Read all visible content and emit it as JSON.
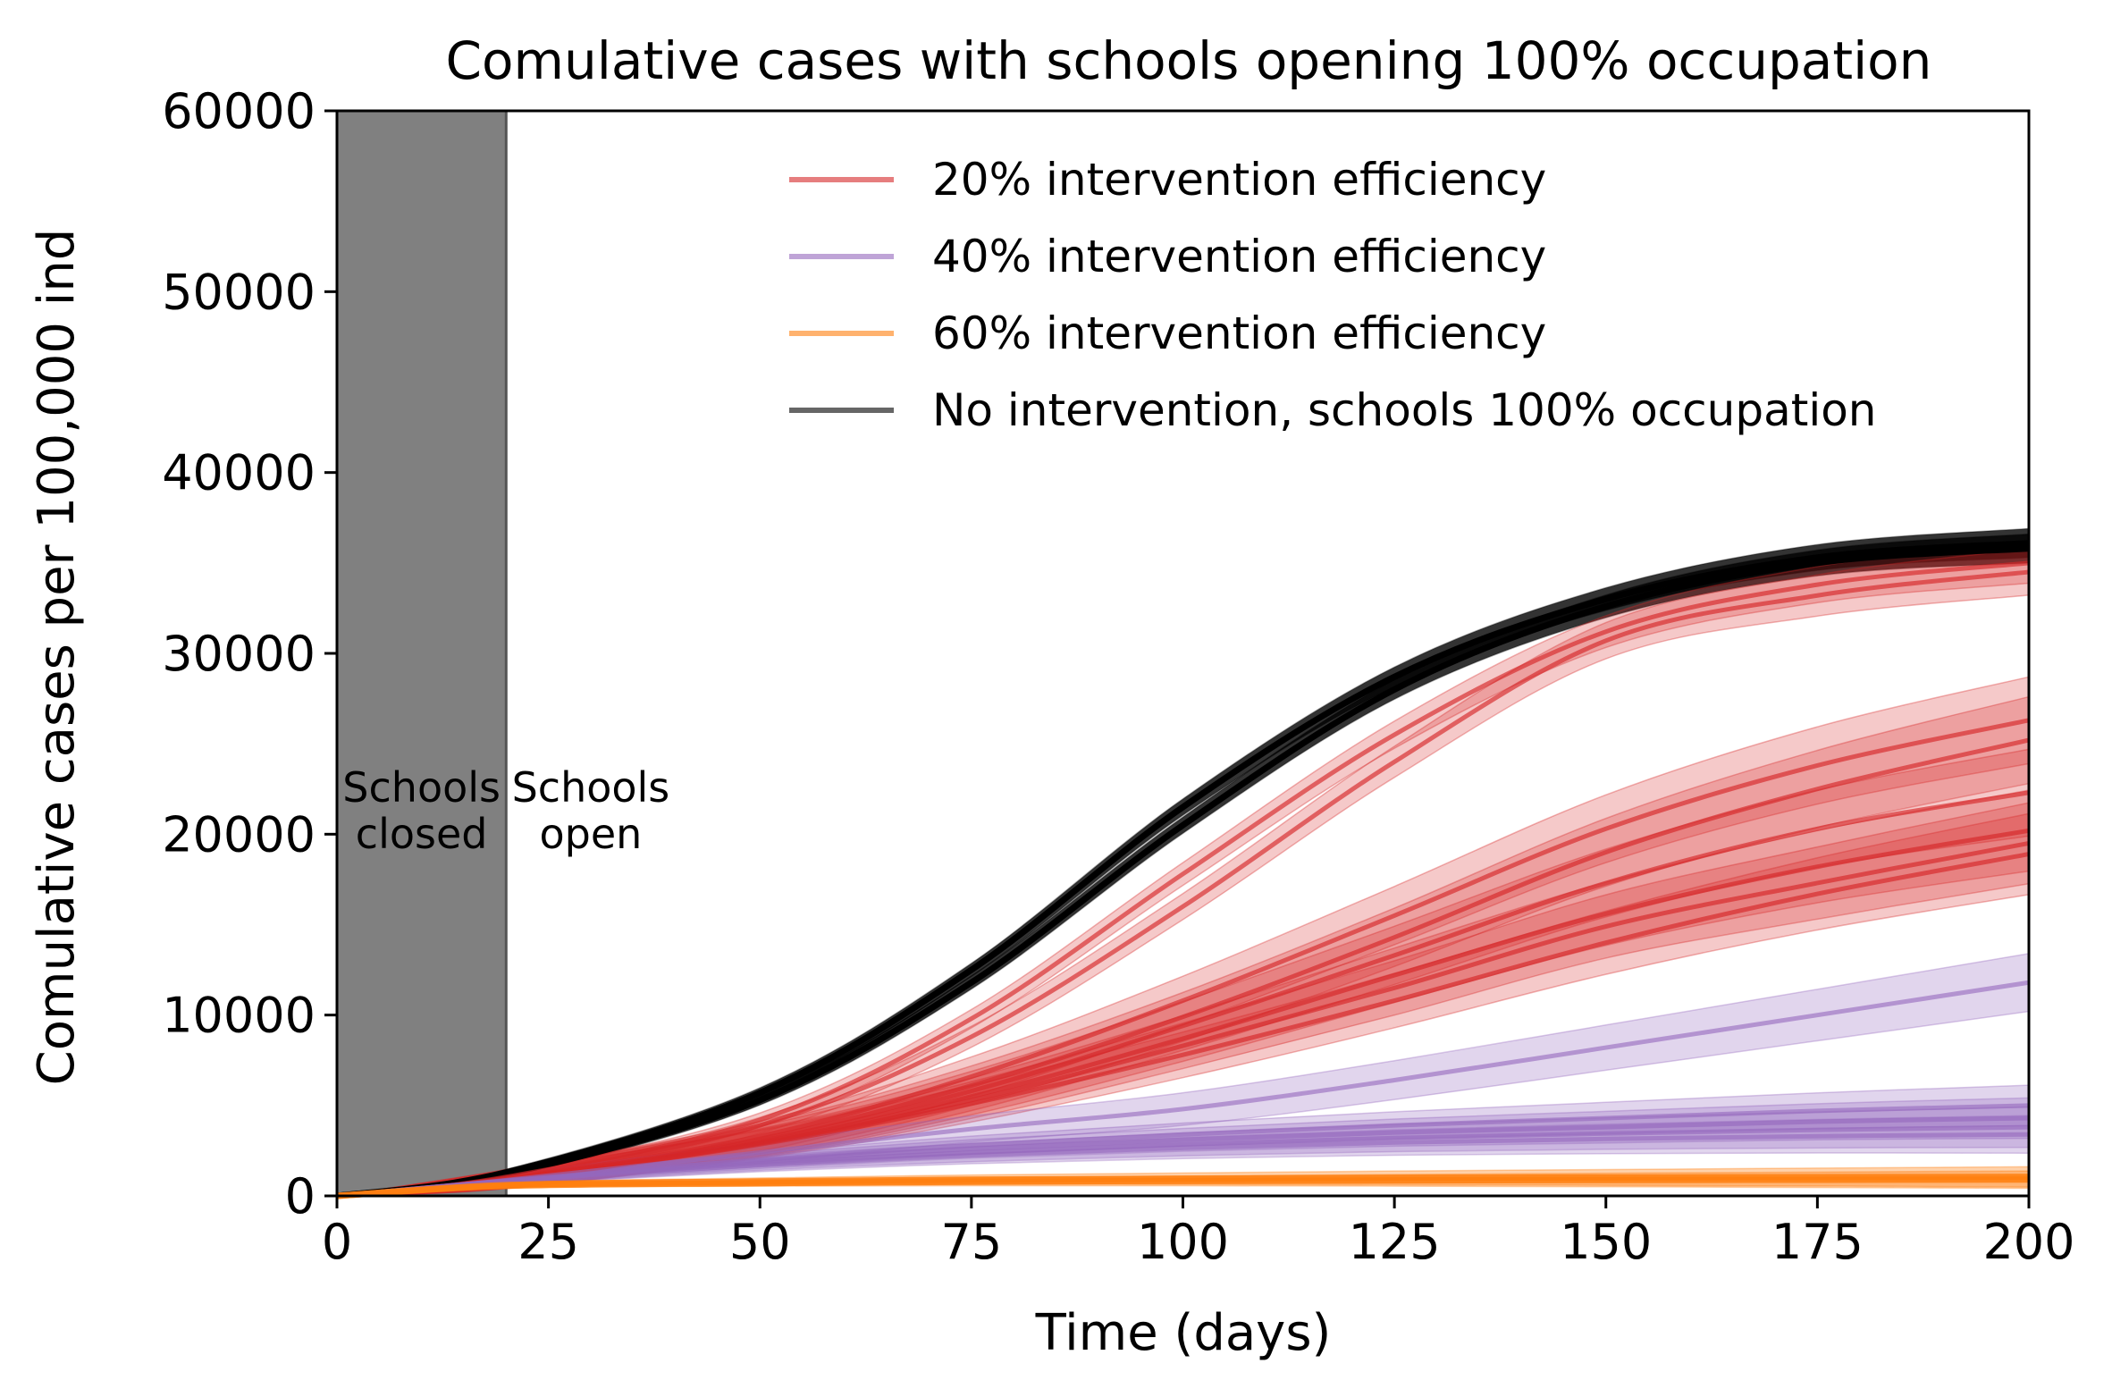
{
  "chart_data": {
    "type": "line",
    "title": "Comulative cases with schools opening 100% occupation",
    "xlabel": "Time (days)",
    "ylabel": "Comulative cases per 100,000 ind",
    "xlim": [
      0,
      200
    ],
    "ylim": [
      0,
      60000
    ],
    "xticks": [
      0,
      25,
      50,
      75,
      100,
      125,
      150,
      175,
      200
    ],
    "yticks": [
      0,
      10000,
      20000,
      30000,
      40000,
      50000,
      60000
    ],
    "grid": false,
    "legend_position": "upper-right",
    "closed_period": [
      0,
      20
    ],
    "annotations": [
      {
        "lines": [
          "Schools",
          "closed"
        ],
        "x": 10,
        "y": 21800
      },
      {
        "lines": [
          "Schools",
          "open"
        ],
        "x": 30,
        "y": 21800
      }
    ],
    "legend": [
      {
        "label": "20% intervention efficiency",
        "color": "#d62728"
      },
      {
        "label": "40% intervention efficiency",
        "color": "#9467bd"
      },
      {
        "label": "60% intervention efficiency",
        "color": "#ff7f0e"
      },
      {
        "label": "No intervention, schools 100% occupation",
        "color": "#000000"
      }
    ],
    "x": [
      0,
      20,
      50,
      75,
      100,
      125,
      150,
      175,
      200
    ],
    "series": [
      {
        "group": "no-intervention",
        "color": "#000000",
        "values": [
          0,
          1300,
          5700,
          12500,
          21500,
          28700,
          33000,
          35300,
          36100
        ],
        "band": 500
      },
      {
        "group": "no-intervention",
        "color": "#000000",
        "values": [
          0,
          1200,
          5300,
          11800,
          20500,
          28000,
          32600,
          35000,
          35800
        ],
        "band": 500
      },
      {
        "group": "20%",
        "color": "#d62728",
        "values": [
          0,
          1050,
          4200,
          9800,
          17800,
          25500,
          31200,
          33800,
          35000
        ],
        "band": 700
      },
      {
        "group": "20%",
        "color": "#d62728",
        "values": [
          0,
          1000,
          3900,
          8800,
          16000,
          24000,
          30700,
          33200,
          34500
        ],
        "band": 800
      },
      {
        "group": "20%",
        "color": "#d62728",
        "values": [
          0,
          950,
          3300,
          6600,
          10800,
          15500,
          20300,
          23800,
          26300
        ],
        "band": 1500
      },
      {
        "group": "20%",
        "color": "#d62728",
        "values": [
          0,
          930,
          3150,
          6100,
          9900,
          14300,
          19000,
          22500,
          25200
        ],
        "band": 1500
      },
      {
        "group": "20%",
        "color": "#d62728",
        "values": [
          0,
          920,
          3050,
          5800,
          9400,
          13300,
          17300,
          20300,
          22300
        ],
        "band": 1500
      },
      {
        "group": "20%",
        "color": "#d62728",
        "values": [
          0,
          910,
          2950,
          5500,
          8700,
          12200,
          15600,
          18200,
          20200
        ],
        "band": 1400
      },
      {
        "group": "20%",
        "color": "#d62728",
        "values": [
          0,
          900,
          2900,
          5300,
          8300,
          11500,
          14900,
          17300,
          19500
        ],
        "band": 1400
      },
      {
        "group": "20%",
        "color": "#d62728",
        "values": [
          0,
          890,
          2850,
          5100,
          7800,
          10800,
          14000,
          16700,
          18900
        ],
        "band": 1400
      },
      {
        "group": "40%",
        "color": "#9467bd",
        "values": [
          0,
          870,
          2400,
          3700,
          4800,
          6400,
          8200,
          10000,
          11800
        ],
        "band": 1000
      },
      {
        "group": "40%",
        "color": "#9467bd",
        "values": [
          0,
          850,
          2000,
          2800,
          3400,
          3900,
          4300,
          4700,
          5000
        ],
        "band": 700
      },
      {
        "group": "40%",
        "color": "#9467bd",
        "values": [
          0,
          840,
          1900,
          2600,
          3100,
          3500,
          3800,
          4100,
          4300
        ],
        "band": 700
      },
      {
        "group": "40%",
        "color": "#9467bd",
        "values": [
          0,
          830,
          1800,
          2400,
          2850,
          3200,
          3450,
          3650,
          3800
        ],
        "band": 700
      },
      {
        "group": "40%",
        "color": "#9467bd",
        "values": [
          0,
          820,
          1700,
          2250,
          2650,
          2950,
          3150,
          3300,
          3400
        ],
        "band": 650
      },
      {
        "group": "60%",
        "color": "#ff7f0e",
        "values": [
          0,
          600,
          800,
          900,
          950,
          1000,
          1020,
          1040,
          1050
        ],
        "band": 350
      },
      {
        "group": "60%",
        "color": "#ff7f0e",
        "values": [
          0,
          550,
          700,
          780,
          830,
          860,
          880,
          890,
          900
        ],
        "band": 300
      }
    ]
  }
}
